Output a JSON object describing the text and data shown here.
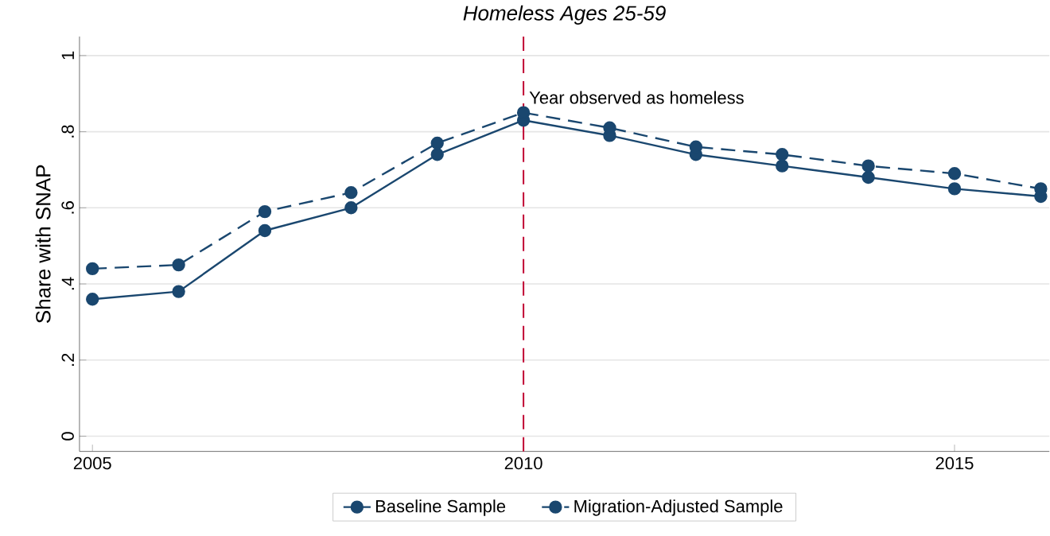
{
  "chart_data": {
    "type": "line",
    "title": "*Homeless Ages 25-59*",
    "ylabel": "Share with SNAP",
    "x": [
      2005,
      2006,
      2007,
      2008,
      2009,
      2010,
      2011,
      2012,
      2013,
      2014,
      2015,
      2016
    ],
    "series": [
      {
        "name": "Baseline Sample",
        "color": "#1a476f",
        "line_style": "solid",
        "values": [
          0.36,
          0.38,
          0.54,
          0.6,
          0.74,
          0.83,
          0.79,
          0.74,
          0.71,
          0.68,
          0.65,
          0.63
        ]
      },
      {
        "name": "Migration-Adjusted Sample",
        "color": "#1a476f",
        "line_style": "dashed",
        "values": [
          0.44,
          0.45,
          0.59,
          0.64,
          0.77,
          0.85,
          0.81,
          0.76,
          0.74,
          0.71,
          0.69,
          0.65
        ]
      }
    ],
    "xlim": [
      2004.85,
      2016.1
    ],
    "ylim": [
      -0.04,
      1.05
    ],
    "xticks": [
      2005,
      2010,
      2015
    ],
    "yticks": [
      0,
      {
        "value": 0.2,
        "label": ".2"
      },
      {
        "value": 0.4,
        "label": ".4"
      },
      {
        "value": 0.6,
        "label": ".6"
      },
      {
        "value": 0.8,
        "label": ".8"
      },
      {
        "value": 1,
        "label": "1"
      }
    ],
    "ref_lines": [
      {
        "axis": "x",
        "value": 2010,
        "label": "Year observed as homeless",
        "color": "#c10534",
        "line_style": "dashed"
      }
    ],
    "grid": "y",
    "legend": "bottom",
    "marker": "circle"
  }
}
